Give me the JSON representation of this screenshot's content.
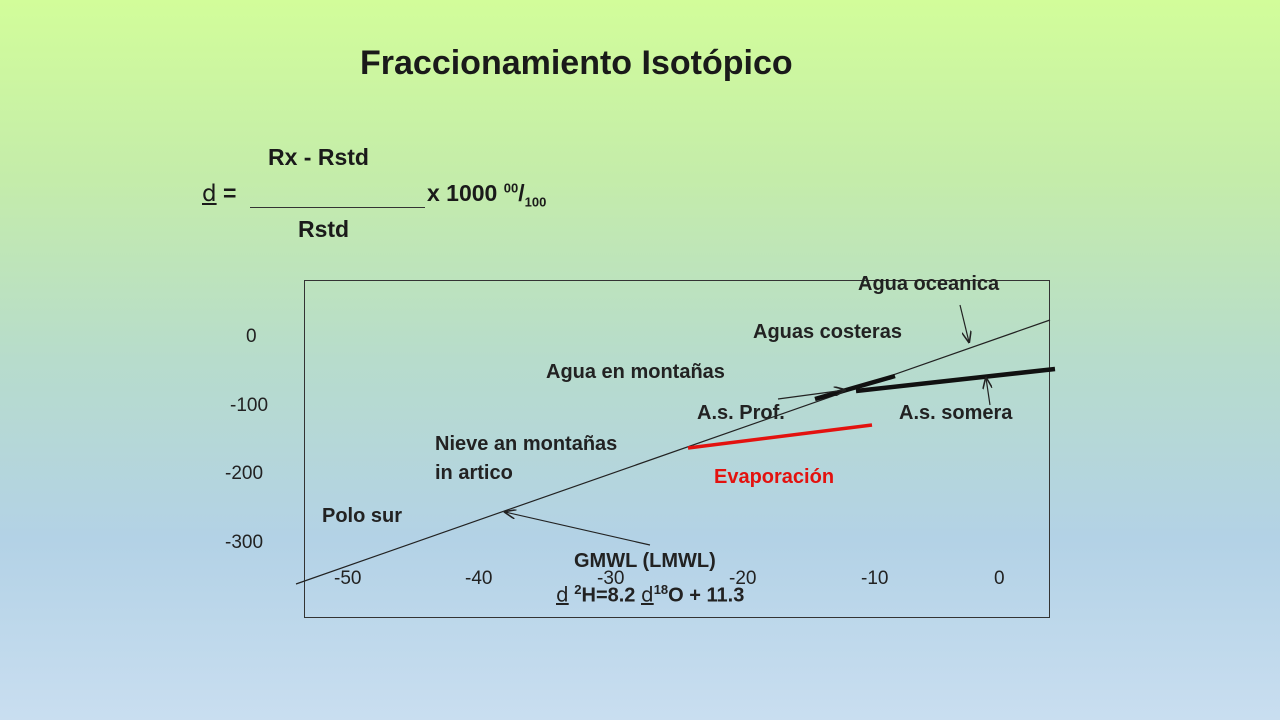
{
  "title": "Fraccionamiento Isotópico",
  "formula": {
    "numerator": "Rx - Rstd",
    "delta_symbol": "d",
    "equals": "=",
    "multiplier": "x 1000",
    "permil_sup": "00",
    "permil_slash": "/",
    "permil_sub": "100",
    "denominator": "Rstd"
  },
  "chart_data": {
    "type": "line",
    "x_tick_labels": [
      "-50",
      "-40",
      "-30",
      "-20",
      "-10",
      "0"
    ],
    "y_tick_labels": [
      "0",
      "-100",
      "-200",
      "-300"
    ],
    "annotations": {
      "agua_oceanica": "Agua oceanica",
      "aguas_costeras": "Aguas costeras",
      "agua_montanas": "Agua en montañas",
      "as_prof": "A.s. Prof.",
      "as_somera": "A.s. somera",
      "nieve_line1": "Nieve an montañas",
      "nieve_line2": "in artico",
      "evaporacion": "Evaporación",
      "polo_sur": "Polo sur",
      "gmwl": "GMWL (LMWL)"
    },
    "equation": {
      "d1": "d",
      "sup1": "2",
      "part1": "H=8.2",
      "d2": "d",
      "sup2": "18",
      "part2": "O + 11.3"
    },
    "colors": {
      "evaporation": "#e3120f",
      "lines": "#111111"
    }
  }
}
